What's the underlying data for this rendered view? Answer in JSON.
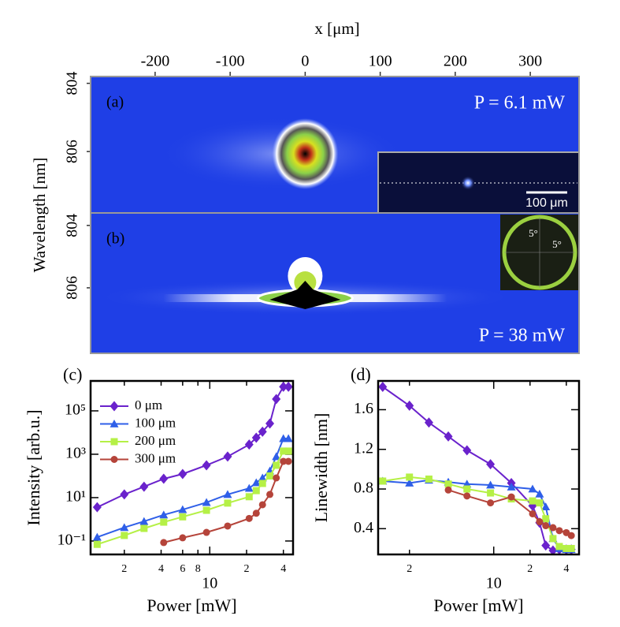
{
  "chart_data": [
    {
      "type": "image",
      "label": "(a)",
      "x_label": "x [μm]",
      "y_label": "Wavelength [nm]",
      "xlim": [
        -286,
        365
      ],
      "xticks": [
        -200,
        -100,
        0,
        100,
        200,
        300
      ],
      "ylim": [
        807.8,
        803.8
      ],
      "yticks": [
        804,
        806
      ],
      "annotation": "P = 6.1 mW",
      "inset_label": "100 μm"
    },
    {
      "type": "image",
      "label": "(b)",
      "ylim": [
        808.1,
        803.6
      ],
      "yticks": [
        804,
        806
      ],
      "annotation": "P = 38 mW",
      "inset_labels": [
        "5°",
        "5°"
      ]
    },
    {
      "type": "line",
      "label": "(c)",
      "x_label": "Power [mW]",
      "y_label": "Intensity [arb.u.]",
      "xlog": true,
      "ylog": true,
      "legend": "upper left",
      "xlim": [
        1.06,
        48
      ],
      "xticks": [
        2,
        4,
        6,
        8,
        10,
        {
          "value": 20,
          "label": "2"
        },
        {
          "value": 40,
          "label": "4"
        }
      ],
      "ylim": [
        0.024,
        2400000
      ],
      "yticks": [
        {
          "value": 0.1,
          "label": "10⁻¹"
        },
        {
          "value": 10,
          "label": "10¹"
        },
        {
          "value": 1000,
          "label": "10³"
        },
        {
          "value": 100000,
          "label": "10⁵"
        }
      ],
      "series": [
        {
          "name": "0 μm",
          "color": "#6a22cc",
          "marker": "diamond",
          "x": [
            1.2,
            2,
            2.9,
            4.2,
            6,
            9.4,
            14,
            21,
            24,
            27,
            31,
            35,
            40,
            44
          ],
          "values": [
            3.6,
            14,
            32,
            74,
            123,
            310,
            780,
            2800,
            5800,
            11000,
            26000,
            350000,
            1300000,
            1300000
          ]
        },
        {
          "name": "100 μm",
          "color": "#2f5fe8",
          "marker": "triangle",
          "x": [
            1.2,
            2,
            2.9,
            4.2,
            6,
            9.4,
            14,
            21,
            24,
            27,
            31,
            35,
            40,
            44
          ],
          "values": [
            0.15,
            0.42,
            0.8,
            1.6,
            2.8,
            6,
            14,
            27,
            49,
            81,
            170,
            780,
            5300,
            5300
          ]
        },
        {
          "name": "200 μm",
          "color": "#b5f046",
          "marker": "square",
          "x": [
            1.2,
            2,
            2.9,
            4.2,
            6,
            9.4,
            14,
            21,
            24,
            27,
            31,
            35,
            40,
            44
          ],
          "values": [
            0.07,
            0.18,
            0.38,
            0.74,
            1.3,
            2.6,
            5.6,
            11,
            21,
            45,
            100,
            310,
            1400,
            1400
          ]
        },
        {
          "name": "300 μm",
          "color": "#b5443a",
          "marker": "circle",
          "x": [
            4.2,
            6,
            9.4,
            14,
            21,
            24,
            27,
            31,
            35,
            40,
            44
          ],
          "values": [
            0.085,
            0.14,
            0.25,
            0.49,
            1.1,
            1.9,
            4.7,
            14,
            81,
            470,
            470
          ]
        }
      ]
    },
    {
      "type": "line",
      "label": "(d)",
      "x_label": "Power [mW]",
      "y_label": "Linewidth [nm]",
      "xlog": true,
      "xlim": [
        1.1,
        51
      ],
      "xticks": [
        2,
        10,
        {
          "value": 20,
          "label": "2"
        },
        {
          "value": 40,
          "label": "4"
        }
      ],
      "ylim": [
        0.14,
        1.89
      ],
      "yticks": [
        0.4,
        0.8,
        1.2,
        1.6
      ],
      "series": [
        {
          "color": "#6a22cc",
          "marker": "diamond",
          "x": [
            1.2,
            2,
            2.9,
            4.2,
            6,
            9.4,
            14,
            21,
            24,
            27,
            31,
            35,
            40,
            44
          ],
          "values": [
            1.83,
            1.64,
            1.47,
            1.33,
            1.19,
            1.05,
            0.86,
            0.63,
            0.46,
            0.23,
            0.18,
            0.19,
            0.19,
            0.19
          ]
        },
        {
          "color": "#2f5fe8",
          "marker": "triangle",
          "x": [
            1.2,
            2,
            2.9,
            4.2,
            6,
            9.4,
            14,
            21,
            24,
            27,
            31,
            35,
            40,
            44
          ],
          "values": [
            0.88,
            0.86,
            0.89,
            0.87,
            0.85,
            0.84,
            0.82,
            0.8,
            0.75,
            0.62,
            0.3,
            0.2,
            0.19,
            0.19
          ]
        },
        {
          "color": "#b5f046",
          "marker": "square",
          "x": [
            1.2,
            2,
            2.9,
            4.2,
            6,
            9.4,
            14,
            21,
            24,
            27,
            31,
            35,
            40,
            44
          ],
          "values": [
            0.88,
            0.92,
            0.9,
            0.85,
            0.8,
            0.76,
            0.7,
            0.68,
            0.66,
            0.5,
            0.3,
            0.22,
            0.2,
            0.2
          ]
        },
        {
          "color": "#b5443a",
          "marker": "circle",
          "x": [
            4.2,
            6,
            9.4,
            14,
            21,
            24,
            27,
            31,
            35,
            40,
            44
          ],
          "values": [
            0.79,
            0.73,
            0.66,
            0.72,
            0.55,
            0.47,
            0.43,
            0.41,
            0.38,
            0.36,
            0.33
          ]
        }
      ]
    }
  ]
}
